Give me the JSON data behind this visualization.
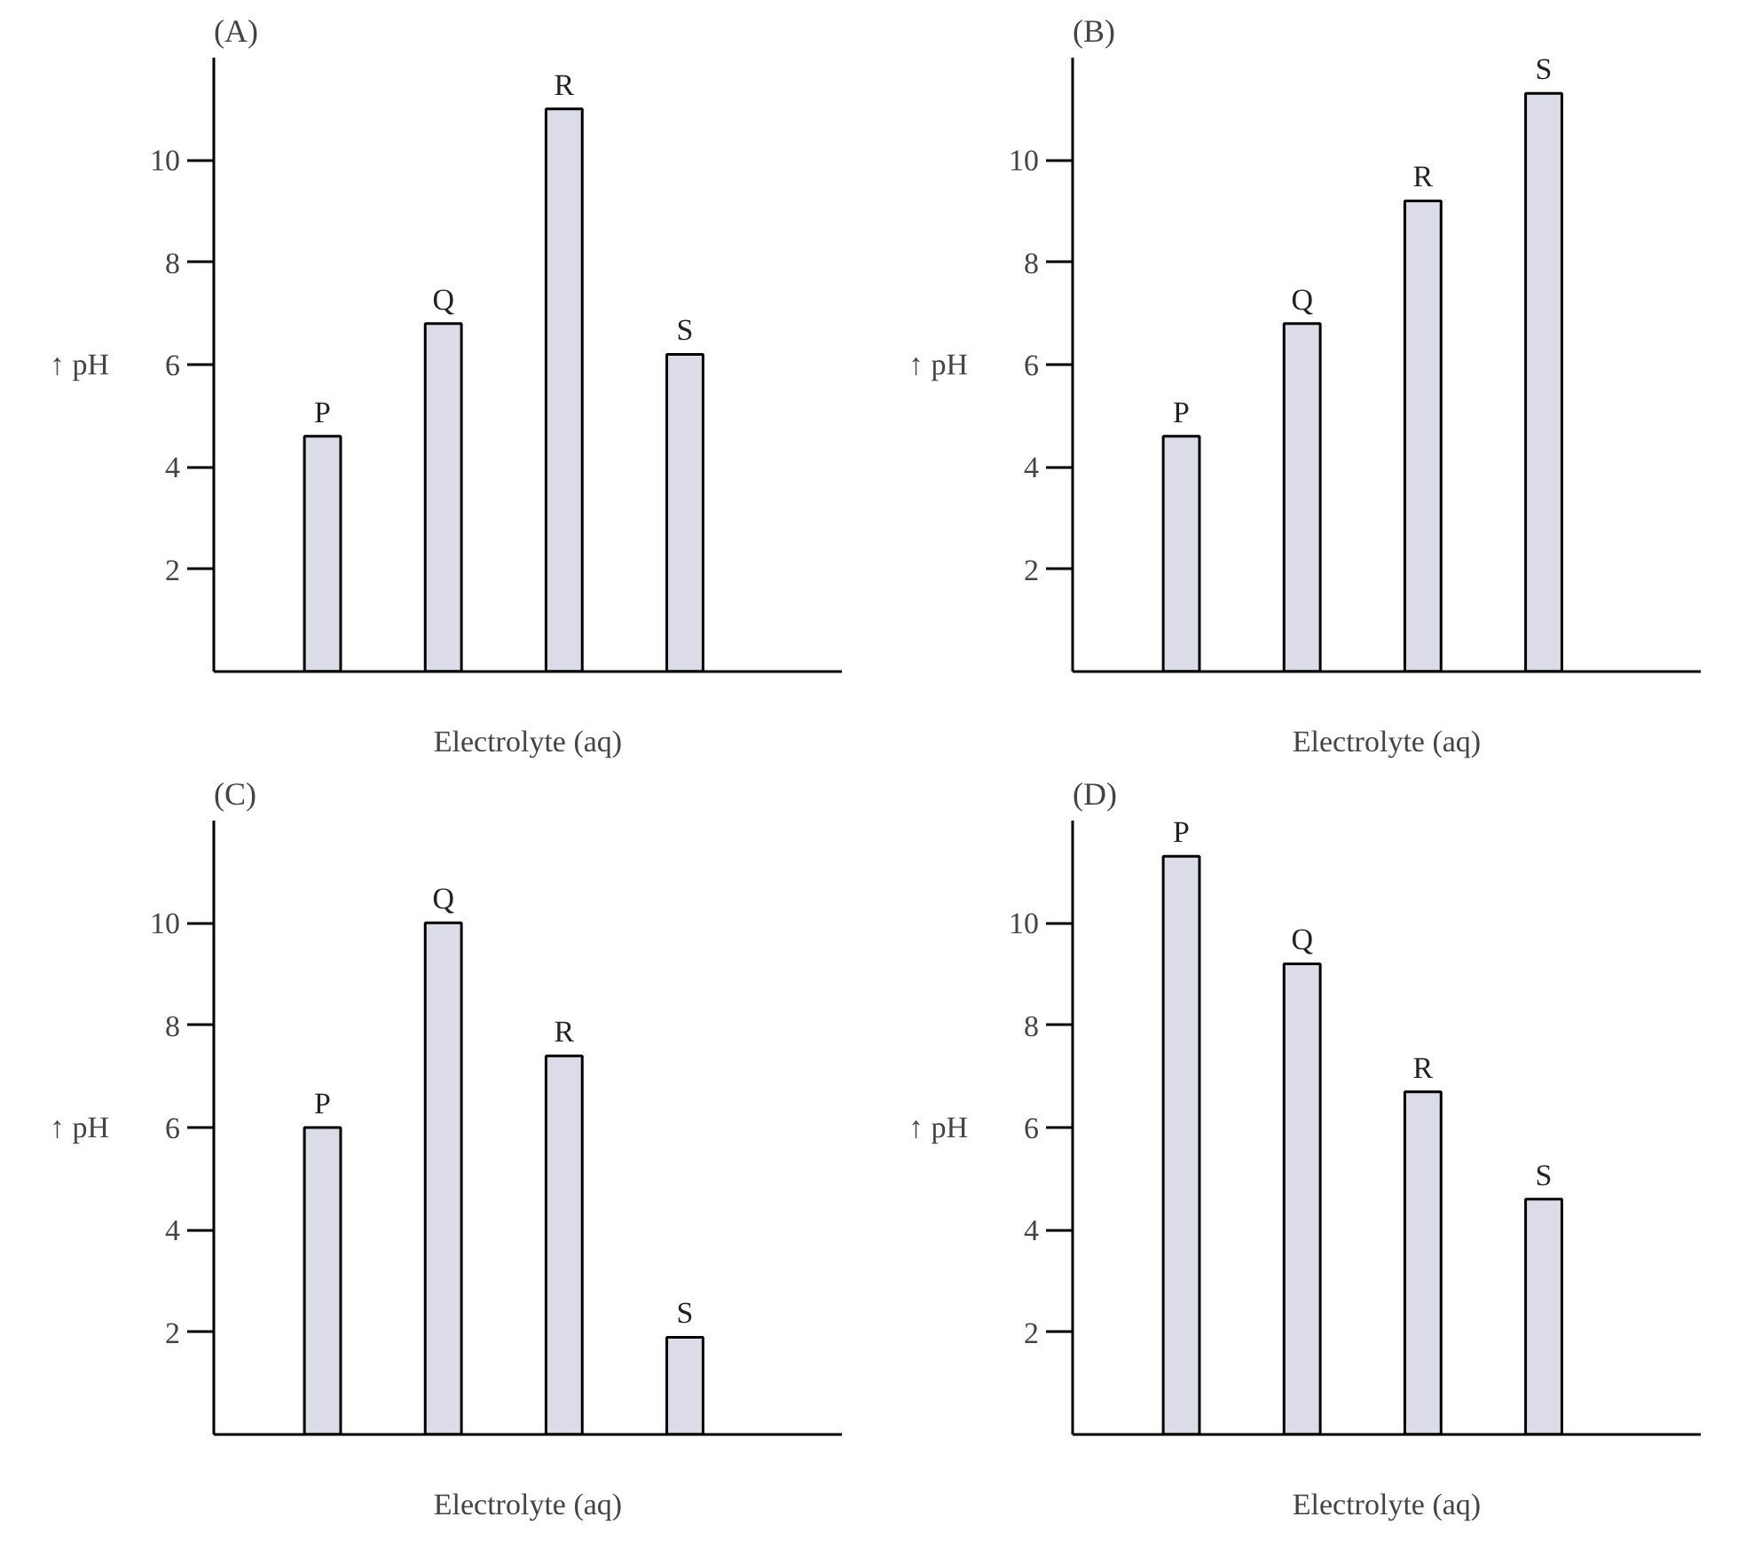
{
  "chart_data": [
    {
      "type": "bar",
      "title": "(A)",
      "xlabel": "Electrolyte (aq)",
      "ylabel": "↑ pH",
      "categories": [
        "P",
        "Q",
        "R",
        "S"
      ],
      "values": [
        4.6,
        6.8,
        11.0,
        6.2
      ],
      "color": "#dcdce8",
      "ylim": [
        0,
        12
      ],
      "yticks": [
        2,
        4,
        6,
        8,
        10
      ],
      "grid": false
    },
    {
      "type": "bar",
      "title": "(B)",
      "xlabel": "Electrolyte (aq)",
      "ylabel": "↑ pH",
      "categories": [
        "P",
        "Q",
        "R",
        "S"
      ],
      "values": [
        4.6,
        6.8,
        9.2,
        11.3
      ],
      "color": "#dcdce8",
      "ylim": [
        0,
        12
      ],
      "yticks": [
        2,
        4,
        6,
        8,
        10
      ],
      "grid": false
    },
    {
      "type": "bar",
      "title": "(C)",
      "xlabel": "Electrolyte (aq)",
      "ylabel": "↑ pH",
      "categories": [
        "P",
        "Q",
        "R",
        "S"
      ],
      "values": [
        6.0,
        10.0,
        7.4,
        1.9
      ],
      "color": "#dcdce8",
      "ylim": [
        0,
        12
      ],
      "yticks": [
        2,
        4,
        6,
        8,
        10
      ],
      "grid": false
    },
    {
      "type": "bar",
      "title": "(D)",
      "xlabel": "Electrolyte (aq)",
      "ylabel": "↑ pH",
      "categories": [
        "P",
        "Q",
        "R",
        "S"
      ],
      "values": [
        11.3,
        9.2,
        6.7,
        4.6
      ],
      "color": "#dcdce8",
      "ylim": [
        0,
        12
      ],
      "yticks": [
        2,
        4,
        6,
        8,
        10
      ],
      "grid": false
    }
  ]
}
